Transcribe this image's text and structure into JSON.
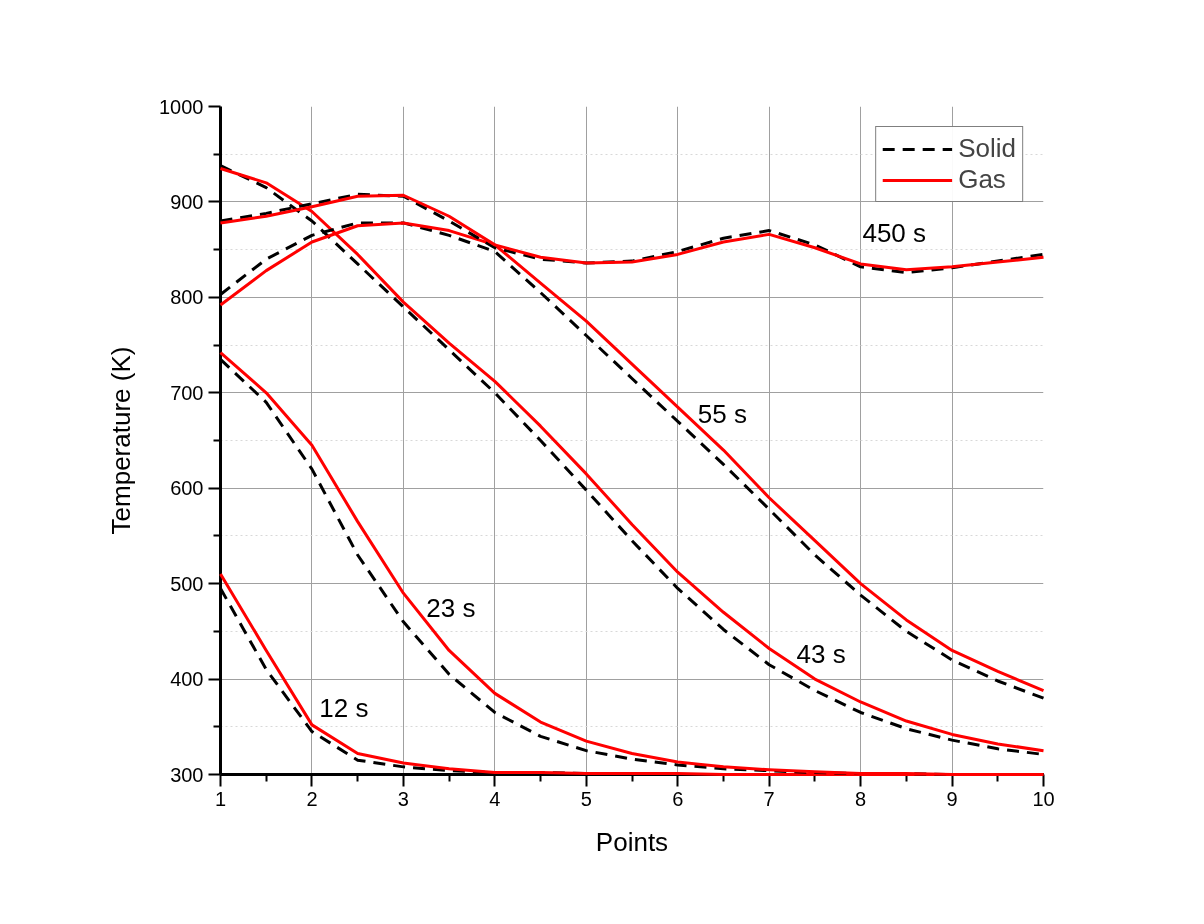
{
  "chart_data": {
    "type": "line",
    "xlabel": "Points",
    "ylabel": "Temperature (K)",
    "x": [
      1,
      1.5,
      2,
      2.5,
      3,
      3.5,
      4,
      4.5,
      5,
      5.5,
      6,
      6.5,
      7,
      7.5,
      8,
      8.5,
      9,
      9.5,
      10
    ],
    "xlim": [
      1,
      10
    ],
    "ylim": [
      300,
      1000
    ],
    "xticks": [
      1,
      2,
      3,
      4,
      5,
      6,
      7,
      8,
      9,
      10
    ],
    "yticks": [
      300,
      400,
      500,
      600,
      700,
      800,
      900,
      1000
    ],
    "grid": true,
    "legend": "top right",
    "marker": "none",
    "series": [
      {
        "name": "Solid",
        "color": "#000000",
        "line_style": "dashed",
        "values": [
          495,
          410,
          345,
          315,
          308,
          304,
          302,
          302,
          301,
          301,
          300,
          300,
          300,
          300,
          300,
          300,
          300,
          300,
          300
        ]
      },
      {
        "name": "Gas",
        "color": "#ff0000",
        "line_style": "solid",
        "values": [
          510,
          430,
          352,
          322,
          312,
          306,
          302,
          302,
          301,
          301,
          301,
          300,
          300,
          300,
          300,
          300,
          300,
          300,
          300
        ]
      },
      {
        "color": "#000000",
        "line_style": "dashed",
        "values": [
          735,
          690,
          620,
          530,
          460,
          405,
          365,
          340,
          325,
          316,
          310,
          306,
          304,
          302,
          301,
          301,
          300,
          300,
          300
        ]
      },
      {
        "color": "#ff0000",
        "line_style": "solid",
        "values": [
          742,
          700,
          645,
          565,
          490,
          430,
          385,
          355,
          335,
          322,
          313,
          308,
          305,
          303,
          301,
          301,
          300,
          300,
          300
        ]
      },
      {
        "color": "#000000",
        "line_style": "dashed",
        "values": [
          938,
          915,
          880,
          835,
          790,
          745,
          700,
          650,
          598,
          545,
          495,
          452,
          415,
          388,
          365,
          348,
          336,
          327,
          321
        ]
      },
      {
        "color": "#ff0000",
        "line_style": "solid",
        "values": [
          935,
          920,
          890,
          845,
          795,
          752,
          712,
          665,
          615,
          562,
          512,
          470,
          432,
          400,
          376,
          356,
          342,
          332,
          325
        ]
      },
      {
        "color": "#000000",
        "line_style": "dashed",
        "values": [
          803,
          840,
          865,
          878,
          878,
          865,
          848,
          805,
          760,
          715,
          670,
          625,
          578,
          530,
          488,
          450,
          420,
          398,
          380
        ]
      },
      {
        "color": "#ff0000",
        "line_style": "solid",
        "values": [
          792,
          828,
          858,
          875,
          878,
          870,
          855,
          815,
          775,
          730,
          685,
          640,
          590,
          545,
          500,
          462,
          430,
          408,
          388
        ]
      },
      {
        "color": "#000000",
        "line_style": "dashed",
        "values": [
          880,
          888,
          898,
          908,
          906,
          880,
          852,
          840,
          836,
          838,
          848,
          862,
          870,
          855,
          832,
          826,
          831,
          838,
          845
        ]
      },
      {
        "color": "#ff0000",
        "line_style": "solid",
        "values": [
          878,
          885,
          895,
          906,
          907,
          885,
          855,
          842,
          836,
          837,
          845,
          858,
          866,
          852,
          835,
          829,
          832,
          837,
          842
        ]
      }
    ],
    "annotations": [
      "12 s",
      "23 s",
      "43 s",
      "55 s",
      "450 s"
    ]
  }
}
